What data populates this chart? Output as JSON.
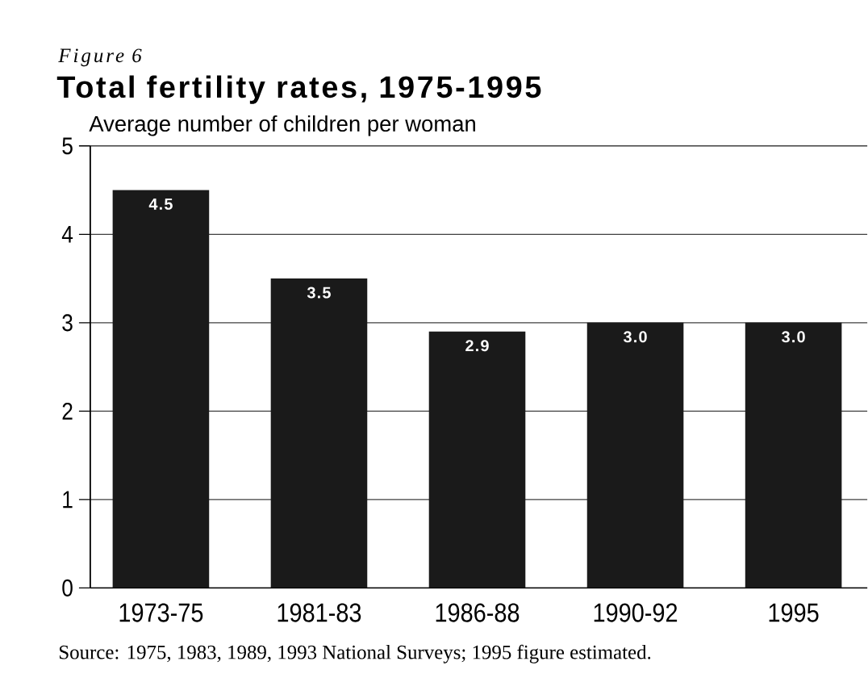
{
  "chart_data": {
    "type": "bar",
    "title": "Total fertility rates, 1975-1995",
    "ylabel": "Average number of children per woman",
    "annotations": [
      "Figure 6",
      "Source: 1975, 1983, 1989, 1993 National Surveys; 1995 figure estimated."
    ],
    "categories": [
      "1973-75",
      "1981-83",
      "1986-88",
      "1990-92",
      "1995"
    ],
    "values": [
      4.5,
      3.5,
      2.9,
      3.0,
      3.0
    ],
    "value_labels": [
      "4.5",
      "3.5",
      "2.9",
      "3.0",
      "3.0"
    ],
    "color": "#1a1a1a",
    "ylim": [
      0,
      5
    ],
    "yticks": [
      0,
      1,
      2,
      3,
      4,
      5
    ],
    "grid": "y"
  }
}
